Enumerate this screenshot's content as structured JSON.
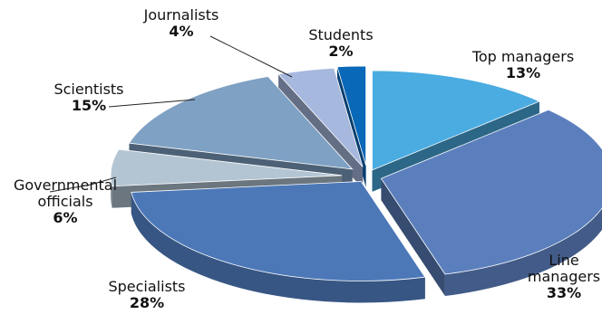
{
  "chart_data": {
    "type": "pie",
    "title": "",
    "style": "3d-exploded",
    "slices": [
      {
        "name": "Top managers",
        "value": 13,
        "label_lines": [
          "Top managers"
        ],
        "value_label": "13%",
        "color": "#4bace1"
      },
      {
        "name": "Line managers",
        "value": 33,
        "label_lines": [
          "Line",
          "managers"
        ],
        "value_label": "33%",
        "color": "#5b7fbd"
      },
      {
        "name": "Specialists",
        "value": 28,
        "label_lines": [
          "Specialists"
        ],
        "value_label": "28%",
        "color": "#4c78b8"
      },
      {
        "name": "Governmental officials",
        "value": 6,
        "label_lines": [
          "Governmental",
          "officials"
        ],
        "value_label": "6%",
        "color": "#b3c5d3"
      },
      {
        "name": "Scientists",
        "value": 15,
        "label_lines": [
          "Scientists"
        ],
        "value_label": "15%",
        "color": "#7fa1c4"
      },
      {
        "name": "Journalists",
        "value": 4,
        "label_lines": [
          "Journalists"
        ],
        "value_label": "4%",
        "color": "#a7b8de"
      },
      {
        "name": "Students",
        "value": 2,
        "label_lines": [
          "Students"
        ],
        "value_label": "2%",
        "color": "#0a68b8"
      }
    ]
  }
}
